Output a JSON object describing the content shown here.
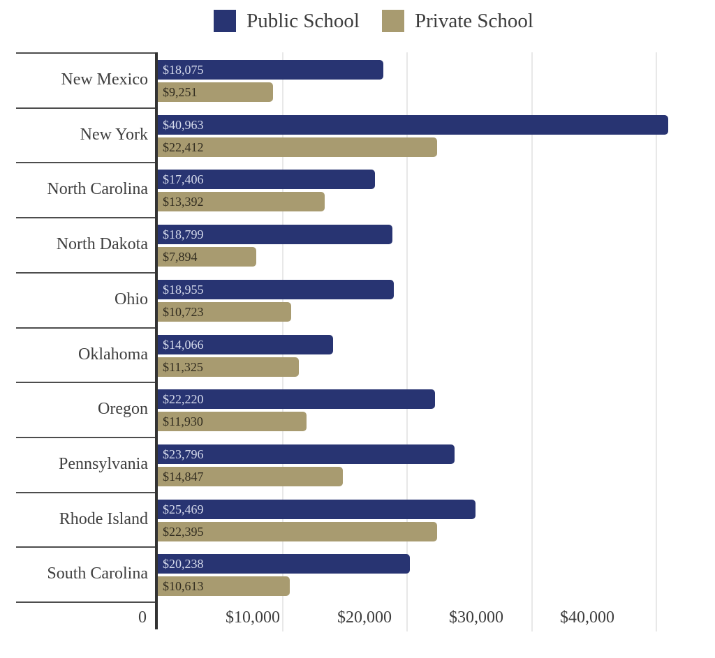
{
  "legend": {
    "items": [
      {
        "label": "Public School",
        "color": "#283472"
      },
      {
        "label": "Private School",
        "color": "#a89b70"
      }
    ]
  },
  "chart_data": {
    "type": "bar",
    "orientation": "horizontal",
    "title": "",
    "categories": [
      "New Mexico",
      "New York",
      "North Carolina",
      "North Dakota",
      "Ohio",
      "Oklahoma",
      "Oregon",
      "Pennsylvania",
      "Rhode Island",
      "South Carolina"
    ],
    "series": [
      {
        "name": "Public School",
        "color": "#283472",
        "label_color": "#d5daeb",
        "values": [
          18075,
          40963,
          17406,
          18799,
          18955,
          14066,
          22220,
          23796,
          25469,
          20238
        ],
        "labels": [
          "$18,075",
          "$40,963",
          "$17,406",
          "$18,799",
          "$18,955",
          "$14,066",
          "$22,220",
          "$23,796",
          "$25,469",
          "$20,238"
        ]
      },
      {
        "name": "Private School",
        "color": "#a89b70",
        "label_color": "#322d20",
        "values": [
          9251,
          22412,
          13392,
          7894,
          10723,
          11325,
          11930,
          14847,
          22395,
          10613
        ],
        "labels": [
          "$9,251",
          "$22,412",
          "$13,392",
          "$7,894",
          "$10,723",
          "$11,325",
          "$11,930",
          "$14,847",
          "$22,395",
          "$10,613"
        ]
      }
    ],
    "xlabel": "",
    "ylabel": "",
    "xlim": [
      0,
      44700
    ],
    "xticks": [
      {
        "value": 0,
        "label": "0"
      },
      {
        "value": 10000,
        "label": "$10,000"
      },
      {
        "value": 20000,
        "label": "$20,000"
      },
      {
        "value": 30000,
        "label": "$30,000"
      },
      {
        "value": 40000,
        "label": "$40,000"
      }
    ],
    "grid": "vertical",
    "legend_position": "top"
  }
}
